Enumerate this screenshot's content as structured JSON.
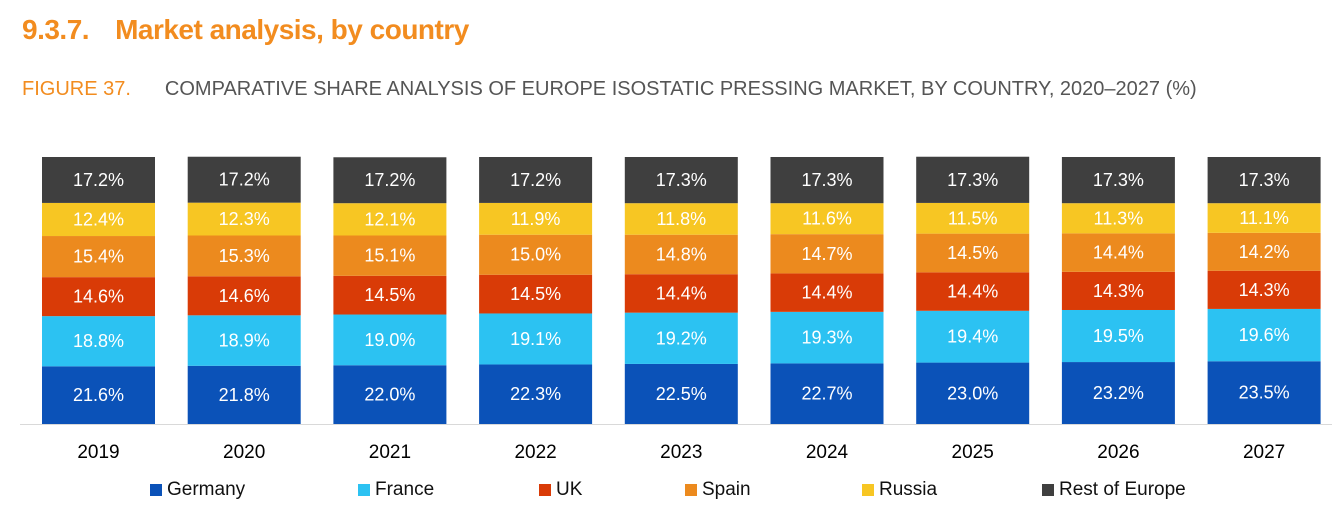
{
  "heading": {
    "number": "9.3.7.",
    "title": "Market analysis, by country"
  },
  "figure": {
    "label": "FIGURE 37.",
    "caption": "COMPARATIVE SHARE ANALYSIS OF EUROPE ISOSTATIC PRESSING MARKET, BY COUNTRY, 2020–2027 (%)"
  },
  "chart_data": {
    "type": "bar",
    "stacked": true,
    "categories": [
      "2019",
      "2020",
      "2021",
      "2022",
      "2023",
      "2024",
      "2025",
      "2026",
      "2027"
    ],
    "series": [
      {
        "name": "Germany",
        "color": "#0b52b8",
        "values": [
          21.6,
          21.8,
          22.0,
          22.3,
          22.5,
          22.7,
          23.0,
          23.2,
          23.5
        ],
        "labels": [
          "21.6%",
          "21.8%",
          "22.0%",
          "22.3%",
          "22.5%",
          "22.7%",
          "23.0%",
          "23.2%",
          "23.5%"
        ]
      },
      {
        "name": "France",
        "color": "#2cc2f2",
        "values": [
          18.8,
          18.9,
          19.0,
          19.1,
          19.2,
          19.3,
          19.4,
          19.5,
          19.6
        ],
        "labels": [
          "18.8%",
          "18.9%",
          "19.0%",
          "19.1%",
          "19.2%",
          "19.3%",
          "19.4%",
          "19.5%",
          "19.6%"
        ]
      },
      {
        "name": "UK",
        "color": "#d93b07",
        "values": [
          14.6,
          14.6,
          14.5,
          14.5,
          14.4,
          14.4,
          14.4,
          14.3,
          14.3
        ],
        "labels": [
          "14.6%",
          "14.6%",
          "14.5%",
          "14.5%",
          "14.4%",
          "14.4%",
          "14.4%",
          "14.3%",
          "14.3%"
        ]
      },
      {
        "name": "Spain",
        "color": "#ec8a1e",
        "values": [
          15.4,
          15.3,
          15.1,
          15.0,
          14.8,
          14.7,
          14.5,
          14.4,
          14.2
        ],
        "labels": [
          "15.4%",
          "15.3%",
          "15.1%",
          "15.0%",
          "14.8%",
          "14.7%",
          "14.5%",
          "14.4%",
          "14.2%"
        ]
      },
      {
        "name": "Russia",
        "color": "#f7c623",
        "values": [
          12.4,
          12.3,
          12.1,
          11.9,
          11.8,
          11.6,
          11.5,
          11.3,
          11.1
        ],
        "labels": [
          "12.4%",
          "12.3%",
          "12.1%",
          "11.9%",
          "11.8%",
          "11.6%",
          "11.5%",
          "11.3%",
          "11.1%"
        ]
      },
      {
        "name": "Rest of Europe",
        "color": "#3f3f3f",
        "values": [
          17.2,
          17.2,
          17.2,
          17.2,
          17.3,
          17.3,
          17.3,
          17.3,
          17.3
        ],
        "labels": [
          "17.2%",
          "17.2%",
          "17.2%",
          "17.2%",
          "17.3%",
          "17.3%",
          "17.3%",
          "17.3%",
          "17.3%"
        ]
      }
    ],
    "label_colors": {
      "Germany": "#ffffff",
      "France": "#ffffff",
      "UK": "#ffffff",
      "Spain": "#ffffff",
      "Russia": "#ffffff",
      "Rest of Europe": "#ffffff"
    },
    "grid": false,
    "legend_position": "bottom"
  }
}
